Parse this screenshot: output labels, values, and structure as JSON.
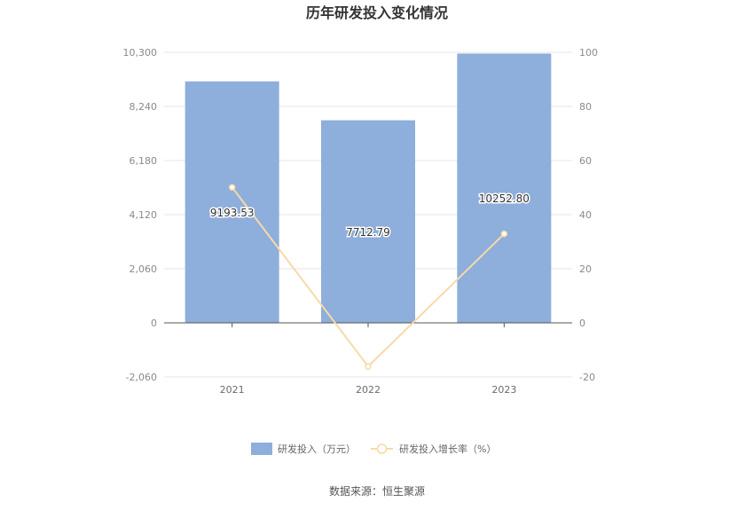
{
  "chart_data": {
    "type": "bar",
    "title": "历年研发投入变化情况",
    "categories": [
      "2021",
      "2022",
      "2023"
    ],
    "series": [
      {
        "name": "研发投入（万元）",
        "type": "bar",
        "axis": "left",
        "color": "#8eaedb",
        "values": [
          9193.53,
          7712.79,
          10252.8
        ],
        "labels": [
          "9193.53",
          "7712.79",
          "10252.80"
        ]
      },
      {
        "name": "研发投入增长率（%）",
        "type": "line",
        "axis": "right",
        "color": "#f8d9a8",
        "values": [
          50.1,
          -16.1,
          32.9
        ]
      }
    ],
    "y_left": {
      "min": -2060,
      "max": 10300,
      "ticks": [
        10300,
        8240,
        6180,
        4120,
        2060,
        0,
        -2060
      ],
      "tick_labels": [
        "10,300",
        "8,240",
        "6,180",
        "4,120",
        "2,060",
        "0",
        "-2,060"
      ]
    },
    "y_right": {
      "min": -20,
      "max": 100,
      "ticks": [
        100,
        80,
        60,
        40,
        20,
        0,
        -20
      ],
      "tick_labels": [
        "100",
        "80",
        "60",
        "40",
        "20",
        "0",
        "-20"
      ]
    },
    "grid": true,
    "legend_position": "bottom-center"
  },
  "footer": {
    "source": "数据来源：恒生聚源"
  }
}
